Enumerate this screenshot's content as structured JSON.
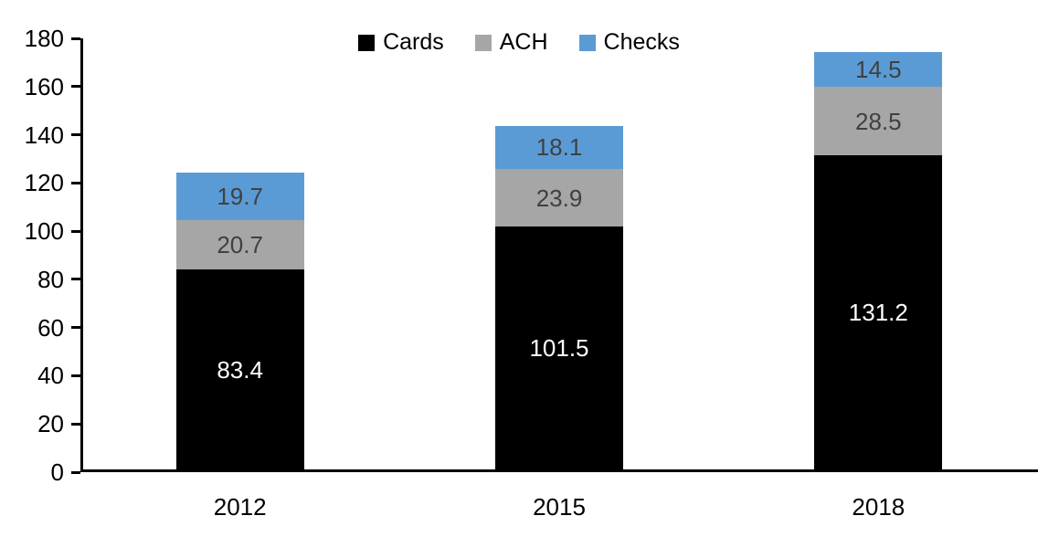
{
  "chart_data": {
    "type": "bar",
    "stacked": true,
    "title": "",
    "xlabel": "",
    "ylabel": "",
    "categories": [
      "2012",
      "2015",
      "2018"
    ],
    "series": [
      {
        "name": "Cards",
        "color": "#000000",
        "label_color": "#FFFFFF",
        "values": [
          83.4,
          101.5,
          131.2
        ]
      },
      {
        "name": "ACH",
        "color": "#A6A6A6",
        "label_color": "#404040",
        "values": [
          20.7,
          23.9,
          28.5
        ]
      },
      {
        "name": "Checks",
        "color": "#5B9BD5",
        "label_color": "#404040",
        "values": [
          19.7,
          18.1,
          14.5
        ]
      }
    ],
    "ylim": [
      0,
      180
    ],
    "ytick_step": 20,
    "ytick_labels": [
      "0",
      "20",
      "40",
      "60",
      "80",
      "100",
      "120",
      "140",
      "160",
      "180"
    ],
    "grid": false,
    "legend": {
      "position": "top-center",
      "entries": [
        "Cards",
        "ACH",
        "Checks"
      ]
    },
    "axis_color": "#000000",
    "background_color": "#FFFFFF"
  }
}
